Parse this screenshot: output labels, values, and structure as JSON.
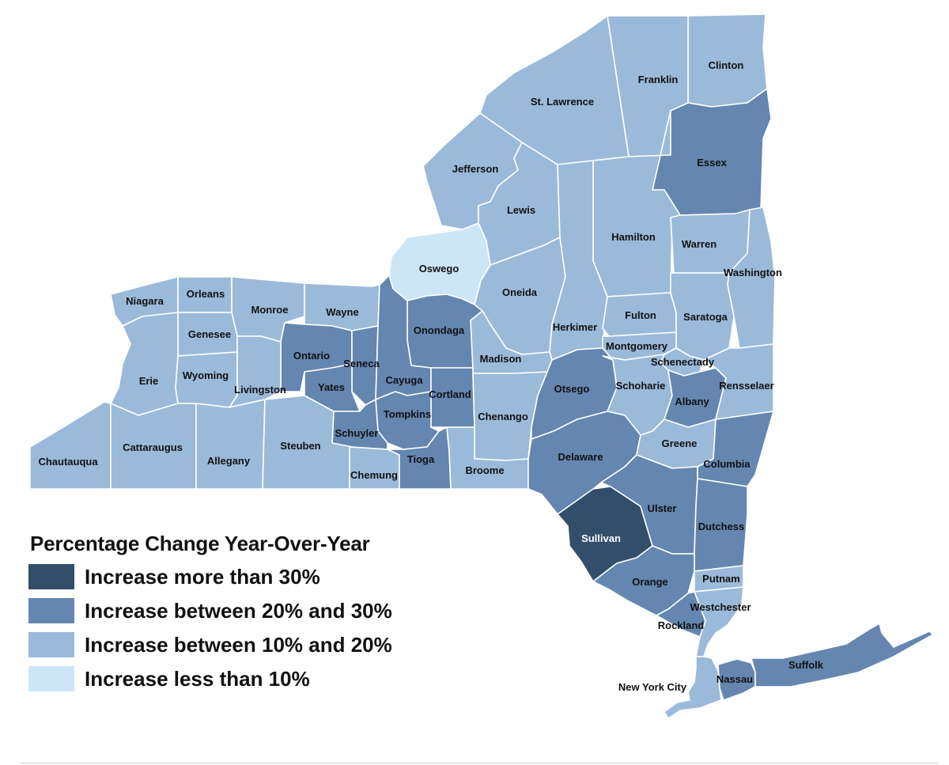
{
  "legend": {
    "title": "Percentage Change Year-Over-Year",
    "categories": [
      {
        "id": "gt30",
        "label": "Increase more than 30%",
        "color": "#334e6b"
      },
      {
        "id": "20to30",
        "label": "Increase between 20% and 30%",
        "color": "#6486b0"
      },
      {
        "id": "10to20",
        "label": "Increase between 10% and 20%",
        "color": "#9bbad9"
      },
      {
        "id": "lt10",
        "label": "Increase less than 10%",
        "color": "#cce6f8"
      }
    ]
  },
  "counties": [
    {
      "name": "Clinton",
      "category": "10to20"
    },
    {
      "name": "Franklin",
      "category": "10to20"
    },
    {
      "name": "St. Lawrence",
      "category": "10to20"
    },
    {
      "name": "Essex",
      "category": "20to30"
    },
    {
      "name": "Jefferson",
      "category": "10to20"
    },
    {
      "name": "Lewis",
      "category": "10to20"
    },
    {
      "name": "Hamilton",
      "category": "10to20"
    },
    {
      "name": "Warren",
      "category": "10to20"
    },
    {
      "name": "Washington",
      "category": "10to20"
    },
    {
      "name": "Oswego",
      "category": "lt10"
    },
    {
      "name": "Oneida",
      "category": "10to20"
    },
    {
      "name": "Herkimer",
      "category": "10to20"
    },
    {
      "name": "Fulton",
      "category": "10to20"
    },
    {
      "name": "Saratoga",
      "category": "10to20"
    },
    {
      "name": "Montgomery",
      "category": "10to20"
    },
    {
      "name": "Schenectady",
      "category": "10to20"
    },
    {
      "name": "Niagara",
      "category": "10to20"
    },
    {
      "name": "Orleans",
      "category": "10to20"
    },
    {
      "name": "Monroe",
      "category": "10to20"
    },
    {
      "name": "Wayne",
      "category": "10to20"
    },
    {
      "name": "Genesee",
      "category": "10to20"
    },
    {
      "name": "Onondaga",
      "category": "20to30"
    },
    {
      "name": "Madison",
      "category": "10to20"
    },
    {
      "name": "Ontario",
      "category": "20to30"
    },
    {
      "name": "Seneca",
      "category": "20to30"
    },
    {
      "name": "Cayuga",
      "category": "20to30"
    },
    {
      "name": "Erie",
      "category": "10to20"
    },
    {
      "name": "Wyoming",
      "category": "10to20"
    },
    {
      "name": "Livingston",
      "category": "10to20"
    },
    {
      "name": "Yates",
      "category": "20to30"
    },
    {
      "name": "Cortland",
      "category": "20to30"
    },
    {
      "name": "Tompkins",
      "category": "20to30"
    },
    {
      "name": "Schuyler",
      "category": "20to30"
    },
    {
      "name": "Chenango",
      "category": "10to20"
    },
    {
      "name": "Otsego",
      "category": "20to30"
    },
    {
      "name": "Schoharie",
      "category": "10to20"
    },
    {
      "name": "Albany",
      "category": "20to30"
    },
    {
      "name": "Rensselaer",
      "category": "10to20"
    },
    {
      "name": "Chautauqua",
      "category": "10to20"
    },
    {
      "name": "Cattaraugus",
      "category": "10to20"
    },
    {
      "name": "Allegany",
      "category": "10to20"
    },
    {
      "name": "Steuben",
      "category": "10to20"
    },
    {
      "name": "Chemung",
      "category": "10to20"
    },
    {
      "name": "Tioga",
      "category": "20to30"
    },
    {
      "name": "Broome",
      "category": "10to20"
    },
    {
      "name": "Delaware",
      "category": "20to30"
    },
    {
      "name": "Greene",
      "category": "10to20"
    },
    {
      "name": "Columbia",
      "category": "20to30"
    },
    {
      "name": "Sullivan",
      "category": "gt30"
    },
    {
      "name": "Ulster",
      "category": "20to30"
    },
    {
      "name": "Dutchess",
      "category": "20to30"
    },
    {
      "name": "Orange",
      "category": "20to30"
    },
    {
      "name": "Putnam",
      "category": "10to20"
    },
    {
      "name": "Westchester",
      "category": "10to20"
    },
    {
      "name": "Rockland",
      "category": "20to30"
    },
    {
      "name": "New York City",
      "category": "10to20"
    },
    {
      "name": "Nassau",
      "category": "20to30"
    },
    {
      "name": "Suffolk",
      "category": "20to30"
    }
  ]
}
